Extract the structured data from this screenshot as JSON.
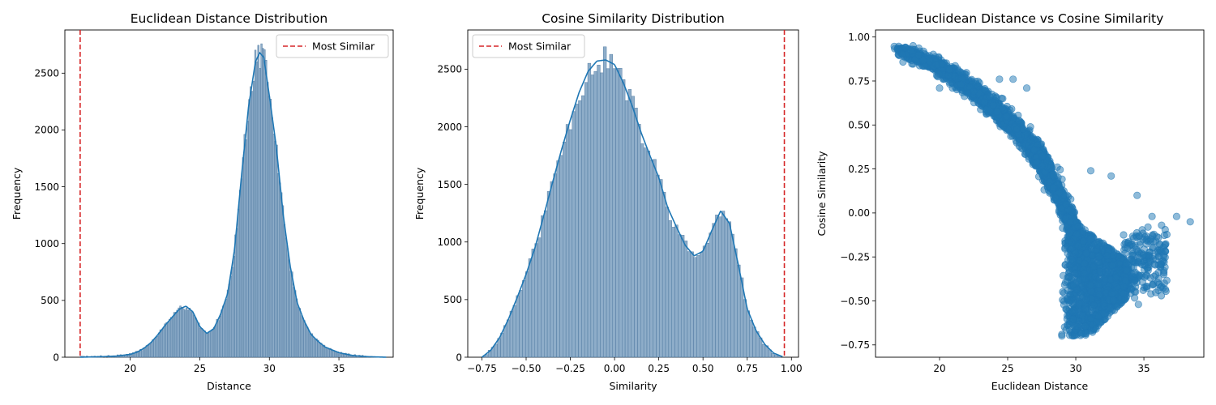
{
  "colors": {
    "hist_fill": "#7a9fbf",
    "hist_edge": "#4f79a0",
    "kde": "#1f77b4",
    "scatter": "#1f77b4",
    "ref_line": "#d62728"
  },
  "chart_data": [
    {
      "type": "histogram",
      "title": "Euclidean Distance Distribution",
      "xlabel": "Distance",
      "ylabel": "Frequency",
      "xlim": [
        15.3,
        38.9
      ],
      "ylim": [
        0,
        2880
      ],
      "xticks": [
        20,
        25,
        30,
        35
      ],
      "yticks": [
        0,
        500,
        1000,
        1500,
        2000,
        2500
      ],
      "legend": {
        "label": "Most Similar",
        "placement": "top-right"
      },
      "reference_line": {
        "x": 16.4,
        "label": "Most Similar",
        "style": "dashed"
      },
      "kde": {
        "x": [
          16.4,
          18,
          19,
          20,
          20.5,
          21,
          21.5,
          22,
          22.5,
          23,
          23.5,
          24,
          24.5,
          25,
          25.5,
          26,
          26.5,
          27,
          27.5,
          28,
          28.5,
          29,
          29.3,
          29.6,
          30,
          30.5,
          31,
          31.5,
          32,
          32.5,
          33,
          33.5,
          34,
          35,
          36,
          37,
          38.4
        ],
        "y": [
          0,
          5,
          10,
          25,
          45,
          80,
          130,
          200,
          280,
          350,
          420,
          450,
          400,
          270,
          210,
          250,
          380,
          560,
          950,
          1600,
          2200,
          2600,
          2680,
          2640,
          2300,
          1850,
          1250,
          800,
          480,
          320,
          200,
          140,
          90,
          40,
          15,
          5,
          0
        ]
      },
      "bins": {
        "start": 16.4,
        "width": 0.11,
        "note_counts": "bar heights follow kde with small sampling noise",
        "noise_seed": 7
      }
    },
    {
      "type": "histogram",
      "title": "Cosine Similarity Distribution",
      "xlabel": "Similarity",
      "ylabel": "Frequency",
      "xlim": [
        -0.83,
        1.04
      ],
      "ylim": [
        0,
        2840
      ],
      "xticks": [
        -0.75,
        -0.5,
        -0.25,
        0.0,
        0.25,
        0.5,
        0.75,
        1.0
      ],
      "xtick_labels": [
        "−0.75",
        "−0.50",
        "−0.25",
        "0.00",
        "0.25",
        "0.50",
        "0.75",
        "1.00"
      ],
      "yticks": [
        0,
        500,
        1000,
        1500,
        2000,
        2500
      ],
      "legend": {
        "label": "Most Similar",
        "placement": "top-left"
      },
      "reference_line": {
        "x": 0.96,
        "label": "Most Similar",
        "style": "dashed"
      },
      "kde": {
        "x": [
          -0.75,
          -0.7,
          -0.65,
          -0.6,
          -0.55,
          -0.5,
          -0.45,
          -0.4,
          -0.35,
          -0.3,
          -0.25,
          -0.2,
          -0.15,
          -0.1,
          -0.05,
          0.0,
          0.05,
          0.1,
          0.15,
          0.2,
          0.25,
          0.3,
          0.35,
          0.4,
          0.45,
          0.5,
          0.55,
          0.6,
          0.65,
          0.7,
          0.75,
          0.8,
          0.85,
          0.9,
          0.95
        ],
        "y": [
          0,
          60,
          170,
          330,
          520,
          720,
          950,
          1230,
          1520,
          1800,
          2060,
          2300,
          2480,
          2570,
          2580,
          2540,
          2380,
          2180,
          1950,
          1750,
          1560,
          1300,
          1130,
          970,
          880,
          920,
          1100,
          1270,
          1160,
          800,
          420,
          230,
          110,
          35,
          5
        ]
      },
      "bins": {
        "start": -0.75,
        "width": 0.0176,
        "note_counts": "bar heights follow kde with small sampling noise",
        "noise_seed": 11
      }
    },
    {
      "type": "scatter",
      "title": "Euclidean Distance vs Cosine Similarity",
      "xlabel": "Euclidean Distance",
      "ylabel": "Cosine Similarity",
      "xlim": [
        15.3,
        39.4
      ],
      "ylim": [
        -0.82,
        1.04
      ],
      "xticks": [
        20,
        25,
        30,
        35
      ],
      "yticks": [
        -0.75,
        -0.5,
        -0.25,
        0.0,
        0.25,
        0.5,
        0.75,
        1.0
      ],
      "ytick_labels": [
        "−0.75",
        "−0.50",
        "−0.25",
        "0.00",
        "0.25",
        "0.50",
        "0.75",
        "1.00"
      ],
      "band_center": {
        "x": [
          16.4,
          18,
          20,
          22,
          24,
          26,
          27,
          28,
          28.5,
          29,
          29.5,
          30,
          30.5,
          31,
          31.5
        ],
        "y": [
          0.93,
          0.9,
          0.83,
          0.73,
          0.6,
          0.45,
          0.35,
          0.22,
          0.15,
          0.07,
          -0.02,
          -0.12,
          -0.25,
          -0.38,
          -0.5
        ]
      },
      "outliers": [
        {
          "x": 38.4,
          "y": -0.05
        },
        {
          "x": 37.4,
          "y": -0.02
        },
        {
          "x": 36.3,
          "y": -0.07
        },
        {
          "x": 35.6,
          "y": -0.02
        },
        {
          "x": 36.5,
          "y": -0.4
        },
        {
          "x": 34.5,
          "y": 0.1
        },
        {
          "x": 32.6,
          "y": 0.21
        },
        {
          "x": 31.1,
          "y": 0.24
        },
        {
          "x": 34.6,
          "y": -0.52
        },
        {
          "x": 35.3,
          "y": -0.08
        },
        {
          "x": 24.4,
          "y": 0.76
        },
        {
          "x": 25.4,
          "y": 0.76
        },
        {
          "x": 26.4,
          "y": 0.71
        },
        {
          "x": 20.0,
          "y": 0.71
        },
        {
          "x": 17.9,
          "y": 0.92
        }
      ]
    }
  ]
}
